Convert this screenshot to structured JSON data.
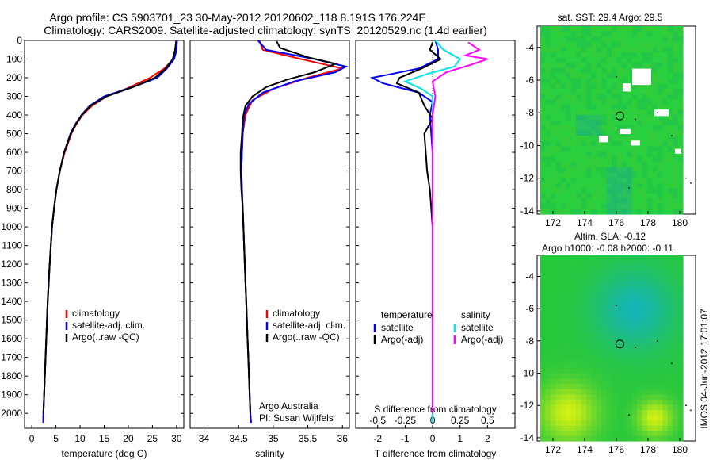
{
  "header": {
    "line1": "Argo profile: CS 5903701_23 30-May-2012 20120602_118 8.191S 176.224E",
    "line2": "Climatology: CARS2009. Satellite-adjusted climatology: synTS_20120529.nc (1.4d earlier)"
  },
  "footer": {
    "credit1": "Argo Australia",
    "credit2": "PI: Susan Wijffels",
    "stamp": "IMOS 04-Jun-2012 17:01:07"
  },
  "colors": {
    "climatology": "#ff0000",
    "satellite": "#0000ff",
    "argo": "#000000",
    "sal_satellite": "#00e5e5",
    "sal_argo": "#ff00ff",
    "map_base": "#22cc44"
  },
  "chart_data": [
    {
      "id": "temperature",
      "type": "line",
      "xlabel": "temperature (deg C)",
      "xlim": [
        -1.5,
        31.5
      ],
      "xticks": [
        0,
        5,
        10,
        15,
        20,
        25,
        30
      ],
      "ylim": [
        2080,
        0
      ],
      "yticks": [
        0,
        100,
        200,
        300,
        400,
        500,
        600,
        700,
        800,
        900,
        1000,
        1100,
        1200,
        1300,
        1400,
        1500,
        1600,
        1700,
        1800,
        1900,
        2000
      ],
      "legend": [
        "climatology",
        "satellite-adj. clim.",
        "Argo(..raw -QC)"
      ],
      "series": [
        {
          "name": "climatology",
          "color": "#ff0000",
          "points": [
            [
              29.9,
              0
            ],
            [
              29.8,
              50
            ],
            [
              29.3,
              100
            ],
            [
              27.5,
              150
            ],
            [
              24.5,
              200
            ],
            [
              19.5,
              260
            ],
            [
              15.5,
              300
            ],
            [
              12.5,
              350
            ],
            [
              10.5,
              400
            ],
            [
              9.2,
              450
            ],
            [
              8.2,
              500
            ],
            [
              6.8,
              600
            ],
            [
              5.8,
              700
            ],
            [
              5.1,
              800
            ],
            [
              4.6,
              900
            ],
            [
              4.2,
              1000
            ],
            [
              3.7,
              1200
            ],
            [
              3.3,
              1400
            ],
            [
              3.0,
              1600
            ],
            [
              2.7,
              1800
            ],
            [
              2.4,
              2000
            ],
            [
              2.35,
              2050
            ]
          ]
        },
        {
          "name": "satellite-adj. clim.",
          "color": "#0000ff",
          "points": [
            [
              30.1,
              0
            ],
            [
              30.0,
              50
            ],
            [
              29.5,
              100
            ],
            [
              28.0,
              150
            ],
            [
              26.0,
              200
            ],
            [
              22.0,
              240
            ],
            [
              15.0,
              300
            ],
            [
              12.0,
              350
            ],
            [
              10.3,
              400
            ],
            [
              9.0,
              450
            ],
            [
              8.0,
              500
            ],
            [
              6.7,
              600
            ],
            [
              5.8,
              700
            ],
            [
              5.1,
              800
            ],
            [
              4.6,
              900
            ],
            [
              4.2,
              1000
            ],
            [
              3.7,
              1200
            ],
            [
              3.3,
              1400
            ],
            [
              3.0,
              1600
            ],
            [
              2.7,
              1800
            ],
            [
              2.4,
              2000
            ],
            [
              2.35,
              2050
            ]
          ]
        },
        {
          "name": "Argo(..raw -QC)",
          "color": "#000000",
          "points": [
            [
              29.9,
              5
            ],
            [
              29.7,
              50
            ],
            [
              29.2,
              100
            ],
            [
              27.8,
              150
            ],
            [
              25.5,
              200
            ],
            [
              21.0,
              250
            ],
            [
              15.5,
              300
            ],
            [
              12.2,
              350
            ],
            [
              10.4,
              400
            ],
            [
              9.1,
              450
            ],
            [
              8.1,
              500
            ],
            [
              6.7,
              600
            ],
            [
              5.8,
              700
            ],
            [
              5.1,
              800
            ],
            [
              4.6,
              900
            ],
            [
              4.2,
              1000
            ],
            [
              3.7,
              1200
            ],
            [
              3.3,
              1400
            ],
            [
              3.0,
              1600
            ],
            [
              2.7,
              1800
            ],
            [
              2.4,
              2000
            ]
          ]
        }
      ]
    },
    {
      "id": "salinity",
      "type": "line",
      "xlabel": "salinity",
      "xlim": [
        33.8,
        36.1
      ],
      "xticks": [
        34,
        34.5,
        35,
        35.5,
        36
      ],
      "xtick_labels": [
        "34",
        "34.5",
        "35",
        "35.5",
        "36"
      ],
      "ylim": [
        2080,
        0
      ],
      "legend": [
        "climatology",
        "satellite-adj. clim.",
        "Argo(..raw -QC)"
      ],
      "series": [
        {
          "name": "climatology",
          "color": "#ff0000",
          "points": [
            [
              34.8,
              0
            ],
            [
              34.85,
              50
            ],
            [
              35.4,
              100
            ],
            [
              36.0,
              150
            ],
            [
              35.5,
              200
            ],
            [
              35.0,
              260
            ],
            [
              34.7,
              320
            ],
            [
              34.6,
              400
            ],
            [
              34.56,
              500
            ],
            [
              34.55,
              600
            ],
            [
              34.54,
              700
            ],
            [
              34.55,
              800
            ],
            [
              34.56,
              900
            ],
            [
              34.57,
              1000
            ],
            [
              34.59,
              1200
            ],
            [
              34.61,
              1400
            ],
            [
              34.63,
              1600
            ],
            [
              34.65,
              1800
            ],
            [
              34.67,
              2000
            ],
            [
              34.68,
              2050
            ]
          ]
        },
        {
          "name": "satellite-adj. clim.",
          "color": "#0000ff",
          "points": [
            [
              34.78,
              0
            ],
            [
              34.9,
              50
            ],
            [
              35.6,
              100
            ],
            [
              36.05,
              140
            ],
            [
              35.9,
              170
            ],
            [
              35.3,
              220
            ],
            [
              34.85,
              280
            ],
            [
              34.65,
              340
            ],
            [
              34.58,
              400
            ],
            [
              34.56,
              500
            ],
            [
              34.55,
              600
            ],
            [
              34.54,
              700
            ],
            [
              34.55,
              800
            ],
            [
              34.56,
              900
            ],
            [
              34.57,
              1000
            ],
            [
              34.59,
              1200
            ],
            [
              34.61,
              1400
            ],
            [
              34.63,
              1600
            ],
            [
              34.65,
              1800
            ],
            [
              34.67,
              2000
            ],
            [
              34.68,
              2050
            ]
          ]
        },
        {
          "name": "Argo(..raw -QC)",
          "color": "#000000",
          "points": [
            [
              35.05,
              5
            ],
            [
              35.1,
              40
            ],
            [
              35.5,
              90
            ],
            [
              35.9,
              125
            ],
            [
              35.6,
              170
            ],
            [
              35.2,
              210
            ],
            [
              34.9,
              250
            ],
            [
              34.7,
              300
            ],
            [
              34.6,
              350
            ],
            [
              34.56,
              420
            ],
            [
              34.55,
              500
            ],
            [
              34.53,
              600
            ],
            [
              34.53,
              700
            ],
            [
              34.54,
              800
            ],
            [
              34.56,
              900
            ],
            [
              34.57,
              1000
            ],
            [
              34.59,
              1200
            ],
            [
              34.61,
              1400
            ],
            [
              34.63,
              1600
            ],
            [
              34.65,
              1800
            ],
            [
              34.67,
              2000
            ]
          ]
        }
      ]
    },
    {
      "id": "difference",
      "type": "line",
      "xlabel": "T difference from climatology",
      "toplabel": "S difference from climatology",
      "xlim": [
        -2.8,
        3.0
      ],
      "xticks": [
        -2,
        -1,
        0,
        1,
        2
      ],
      "xtick_labels": [
        "-2",
        "-1",
        "0",
        "1",
        "2"
      ],
      "sticks": [
        -2,
        -1,
        0,
        1,
        2
      ],
      "stick_labels": [
        "-0.5",
        "-0.25",
        "0",
        "0.25",
        "0.5"
      ],
      "ylim": [
        2080,
        0
      ],
      "legend_t_title": "temperature",
      "legend_s_title": "salinity",
      "legend_t": [
        "satellite",
        "Argo(-adj)"
      ],
      "legend_s": [
        "satellite",
        "Argo(-adj)"
      ],
      "series": [
        {
          "name": "T satellite",
          "color": "#0000ff",
          "points": [
            [
              0.1,
              0
            ],
            [
              0.2,
              50
            ],
            [
              0.2,
              100
            ],
            [
              -0.5,
              150
            ],
            [
              -1.5,
              180
            ],
            [
              -2.2,
              200
            ],
            [
              -1.8,
              230
            ],
            [
              -0.5,
              280
            ],
            [
              0.0,
              330
            ],
            [
              -0.1,
              400
            ],
            [
              0.0,
              600
            ],
            [
              0.0,
              1000
            ],
            [
              0.0,
              2050
            ]
          ]
        },
        {
          "name": "T Argo(-adj)",
          "color": "#000000",
          "points": [
            [
              0.0,
              10
            ],
            [
              -0.1,
              50
            ],
            [
              0.3,
              100
            ],
            [
              -0.4,
              150
            ],
            [
              -1.2,
              200
            ],
            [
              -1.3,
              230
            ],
            [
              -0.5,
              280
            ],
            [
              -0.3,
              350
            ],
            [
              0.0,
              420
            ],
            [
              -0.3,
              500
            ],
            [
              -0.25,
              600
            ],
            [
              -0.2,
              700
            ],
            [
              -0.1,
              800
            ],
            [
              0.0,
              1000
            ],
            [
              0.0,
              2000
            ]
          ]
        },
        {
          "name": "S satellite",
          "color": "#00e5e5",
          "points": [
            [
              0.1,
              0
            ],
            [
              0.4,
              50
            ],
            [
              1.0,
              100
            ],
            [
              0.8,
              140
            ],
            [
              -0.2,
              180
            ],
            [
              -1.0,
              220
            ],
            [
              -0.4,
              260
            ],
            [
              0.0,
              300
            ],
            [
              0.0,
              400
            ],
            [
              0.0,
              600
            ],
            [
              0.0,
              1000
            ],
            [
              0.0,
              2050
            ]
          ]
        },
        {
          "name": "S Argo(-adj)",
          "color": "#ff00ff",
          "points": [
            [
              1.3,
              10
            ],
            [
              1.7,
              50
            ],
            [
              1.2,
              80
            ],
            [
              2.0,
              100
            ],
            [
              1.4,
              130
            ],
            [
              0.5,
              170
            ],
            [
              0.0,
              220
            ],
            [
              0.1,
              300
            ],
            [
              0.0,
              400
            ],
            [
              0.0,
              600
            ],
            [
              0.0,
              1000
            ],
            [
              0.0,
              2000
            ]
          ]
        }
      ]
    },
    {
      "id": "sst_map",
      "type": "heatmap",
      "title": "sat. SST: 29.4  Argo: 29.5",
      "xlim": [
        171,
        181
      ],
      "ylim": [
        -14.2,
        -2.7
      ],
      "xticks": [
        172,
        174,
        176,
        178,
        180
      ],
      "yticks": [
        -4,
        -6,
        -8,
        -10,
        -12,
        -14
      ],
      "marker": [
        176.224,
        -8.191
      ]
    },
    {
      "id": "sla_map",
      "type": "heatmap",
      "title": "Altim. SLA: -0.12",
      "title2": "Argo h1000: -0.08 h2000: -0.11",
      "xlim": [
        171,
        181
      ],
      "ylim": [
        -14.2,
        -2.7
      ],
      "xticks": [
        172,
        174,
        176,
        178,
        180
      ],
      "yticks": [
        -4,
        -6,
        -8,
        -10,
        -12,
        -14
      ],
      "marker": [
        176.224,
        -8.191
      ]
    }
  ]
}
